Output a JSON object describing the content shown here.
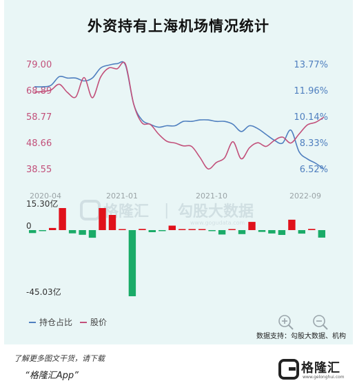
{
  "title": "外资持有上海机场情况统计",
  "watermark": {
    "brand": "格隆汇",
    "divider": "|",
    "product": "勾股大数据",
    "url": "www.gogudata.com"
  },
  "chart_data": [
    {
      "type": "line",
      "x_ticks": [
        "2020-04",
        "2021-01",
        "2021-10",
        "2022-09"
      ],
      "y_left_ticks": [
        "79.00",
        "68.89",
        "58.77",
        "48.66",
        "38.55"
      ],
      "y_right_ticks": [
        "13.77%",
        "11.96%",
        "10.14%",
        "8.33%",
        "6.52%"
      ],
      "y_left_range": [
        38.55,
        79.0
      ],
      "y_right_range": [
        6.52,
        13.77
      ],
      "series": [
        {
          "name": "持仓占比",
          "color": "#4f7fbf",
          "axis": "right",
          "values": [
            12.2,
            12.2,
            12.3,
            12.9,
            12.8,
            12.8,
            12.6,
            12.8,
            13.5,
            13.7,
            13.8,
            13.7,
            11.0,
            9.9,
            9.6,
            9.4,
            9.5,
            9.5,
            9.8,
            9.8,
            9.9,
            9.9,
            9.8,
            9.8,
            9.6,
            9.1,
            9.5,
            9.3,
            8.9,
            8.5,
            8.3,
            9.2,
            7.7,
            7.2,
            6.9,
            6.5
          ]
        },
        {
          "name": "股价",
          "color": "#c2507a",
          "axis": "left",
          "values": [
            68.2,
            68.4,
            69.0,
            71.2,
            68.0,
            66.3,
            73.8,
            66.0,
            74.0,
            77.5,
            77.2,
            79.0,
            63.5,
            56.3,
            55.7,
            52.0,
            49.2,
            48.5,
            47.4,
            47.2,
            43.0,
            38.5,
            41.0,
            42.8,
            49.0,
            42.4,
            46.7,
            48.6,
            47.2,
            49.5,
            50.8,
            48.5,
            52.0,
            55.5,
            56.5,
            58.5
          ]
        }
      ]
    },
    {
      "type": "bar",
      "unit": "亿",
      "max_label": "15.30亿",
      "zero_label": "0",
      "min_label": "-45.03亿",
      "ylim": [
        -45.03,
        15.3
      ],
      "values": [
        -2.0,
        -0.3,
        1.5,
        15.3,
        -2.2,
        -3.2,
        -5.2,
        15.3,
        10.5,
        0.4,
        -45.03,
        0.8,
        -1.4,
        -0.5,
        3.1,
        0.5,
        0.6,
        0.4,
        -0.6,
        -3.0,
        0.3,
        -2.7,
        5.7,
        -1.2,
        -2.3,
        -3.3,
        7.2,
        -2.4,
        0.8,
        -5.1
      ]
    }
  ],
  "legend": [
    {
      "label": "持仓占比",
      "color": "#4f7fbf"
    },
    {
      "label": "股价",
      "color": "#c2507a"
    }
  ],
  "controls": {
    "zoom_in_icon": "zoom-in-icon",
    "zoom_out_icon": "zoom-out-icon"
  },
  "source": "数据支持：勾股大数据、机构",
  "footer": {
    "note": "了解更多图文干货，请下载",
    "app": "“格隆汇App”",
    "logo_text": "格隆汇",
    "logo_url": "www.gelonghui.com"
  },
  "colors": {
    "positive": "#e0111b",
    "negative": "#1aab68",
    "panel": "#e9f6f6"
  }
}
